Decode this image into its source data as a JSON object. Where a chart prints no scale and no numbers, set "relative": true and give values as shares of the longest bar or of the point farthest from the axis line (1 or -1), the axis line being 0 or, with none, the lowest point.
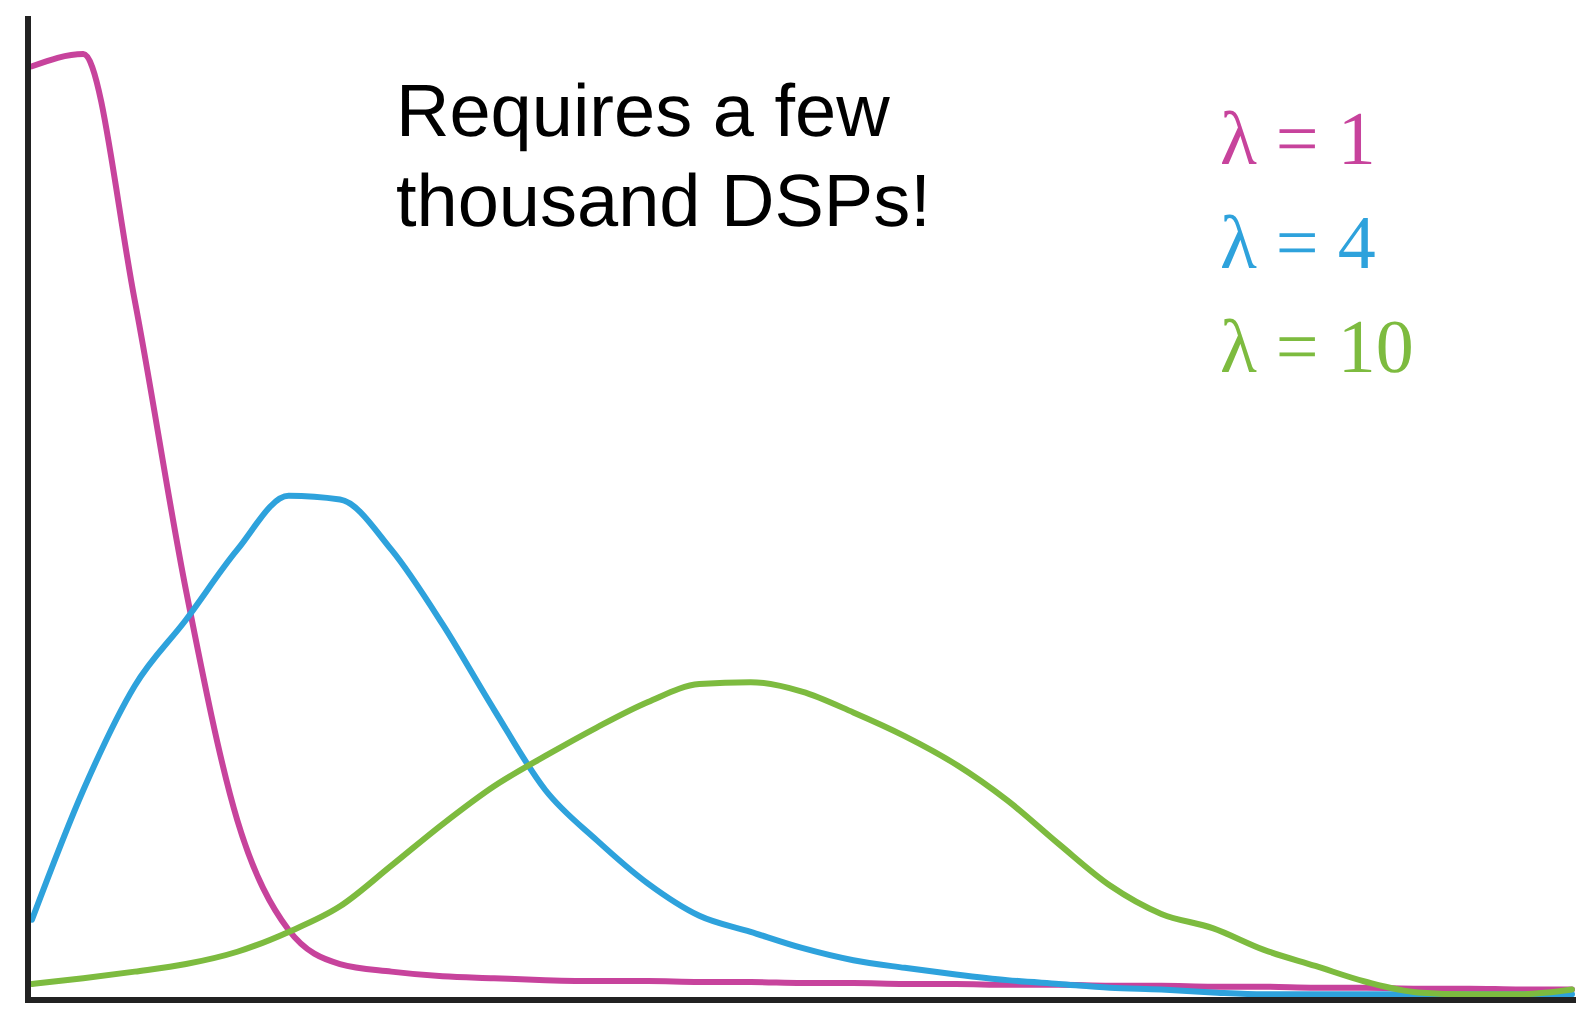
{
  "chart_data": {
    "type": "line",
    "relative": true,
    "categories": [
      null,
      null,
      null,
      null,
      null,
      null,
      null,
      null,
      null,
      null,
      null,
      null,
      null,
      null,
      null,
      null,
      null,
      null,
      null,
      null,
      null,
      null,
      null,
      null,
      null,
      null,
      null,
      null,
      null,
      null,
      null
    ],
    "annotations": [
      "Requires a few\nthousand DSPs!"
    ],
    "legend": "top right",
    "grid": false,
    "marker": "none",
    "line_style": "solid",
    "series": [
      {
        "name": "λ = 1",
        "color": "#c7439c",
        "values": [
          0.987,
          1,
          0.74,
          0.433,
          0.19,
          0.074,
          0.038,
          0.03,
          0.025,
          0.023,
          0.021,
          0.02,
          0.02,
          0.019,
          0.019,
          0.018,
          0.018,
          0.017,
          0.017,
          0.016,
          0.016,
          0.015,
          0.015,
          0.014,
          0.014,
          0.013,
          0.013,
          0.012,
          0.012,
          0.011,
          0.011
        ]
      },
      {
        "name": "λ = 4",
        "color": "#2ea2dc",
        "values": [
          0.085,
          0.222,
          0.332,
          0.402,
          0.476,
          0.533,
          0.529,
          0.476,
          0.397,
          0.307,
          0.222,
          0.169,
          0.123,
          0.089,
          0.072,
          0.055,
          0.042,
          0.034,
          0.027,
          0.021,
          0.017,
          0.013,
          0.011,
          0.008,
          0.006,
          0.006,
          0.006,
          0.006,
          0.006,
          0.006,
          0.006
        ]
      },
      {
        "name": "λ = 10",
        "color": "#7dbb3f",
        "values": [
          0.017,
          0.023,
          0.03,
          0.038,
          0.051,
          0.072,
          0.099,
          0.142,
          0.186,
          0.226,
          0.258,
          0.288,
          0.315,
          0.334,
          0.336,
          0.326,
          0.304,
          0.279,
          0.249,
          0.211,
          0.165,
          0.121,
          0.091,
          0.076,
          0.053,
          0.036,
          0.019,
          0.008,
          0.006,
          0.006,
          0.011
        ]
      }
    ]
  }
}
